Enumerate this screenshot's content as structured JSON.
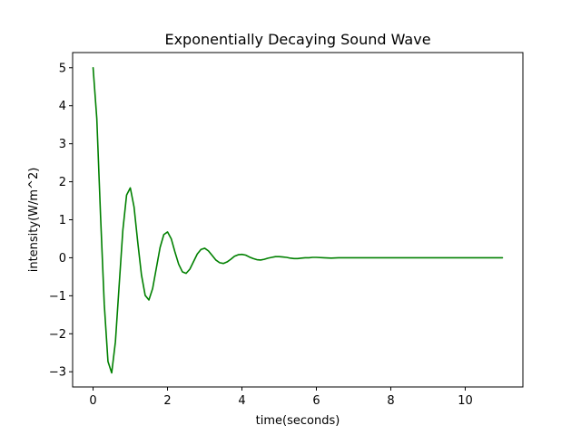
{
  "chart_data": {
    "type": "line",
    "title": "Exponentially Decaying Sound Wave",
    "xlabel": "time(seconds)",
    "ylabel": "intensity(W/m^2)",
    "xlim": [
      -0.55,
      11.55
    ],
    "ylim": [
      -3.4,
      5.4
    ],
    "grid": false,
    "legend": "none",
    "xticks": [
      0,
      2,
      4,
      6,
      8,
      10
    ],
    "xtick_labels": [
      "0",
      "2",
      "4",
      "6",
      "8",
      "10"
    ],
    "yticks": [
      -3,
      -2,
      -1,
      0,
      1,
      2,
      3,
      4,
      5
    ],
    "ytick_labels": [
      "−3",
      "−2",
      "−1",
      "0",
      "1",
      "2",
      "3",
      "4",
      "5"
    ],
    "series": [
      {
        "color": "#008000",
        "x": [
          0.0,
          0.1,
          0.2,
          0.3,
          0.4,
          0.5,
          0.6,
          0.7,
          0.8,
          0.9,
          1.0,
          1.1,
          1.2,
          1.3,
          1.4,
          1.5,
          1.6,
          1.7,
          1.8,
          1.9,
          2.0,
          2.1,
          2.2,
          2.3,
          2.4,
          2.5,
          2.6,
          2.7,
          2.8,
          2.9,
          3.0,
          3.1,
          3.2,
          3.3,
          3.4,
          3.5,
          3.6,
          3.7,
          3.8,
          3.9,
          4.0,
          4.1,
          4.2,
          4.3,
          4.4,
          4.5,
          4.6,
          4.7,
          4.8,
          4.9,
          5.0,
          5.1,
          5.2,
          5.3,
          5.4,
          5.5,
          5.6,
          5.7,
          5.8,
          5.9,
          6.0,
          6.2,
          6.4,
          6.6,
          6.8,
          7.0,
          7.2,
          7.4,
          7.6,
          7.8,
          8.0,
          8.5,
          9.0,
          9.5,
          10.0,
          10.5,
          11.0
        ],
        "y": [
          5.0,
          3.66,
          1.12,
          -1.22,
          -2.73,
          -3.03,
          -2.21,
          -0.73,
          0.73,
          1.65,
          1.84,
          1.34,
          0.41,
          -0.45,
          -0.99,
          -1.11,
          -0.81,
          -0.27,
          0.27,
          0.61,
          0.68,
          0.5,
          0.15,
          -0.17,
          -0.37,
          -0.41,
          -0.3,
          -0.1,
          0.1,
          0.22,
          0.25,
          0.18,
          0.06,
          -0.06,
          -0.13,
          -0.15,
          -0.11,
          -0.04,
          0.04,
          0.08,
          0.09,
          0.07,
          0.02,
          -0.02,
          -0.05,
          -0.06,
          -0.04,
          -0.01,
          0.01,
          0.03,
          0.03,
          0.02,
          0.01,
          -0.01,
          -0.02,
          -0.02,
          -0.01,
          0.0,
          0.0,
          0.01,
          0.01,
          0.0,
          -0.01,
          0.0,
          0.0,
          0.0,
          0.0,
          0.0,
          0.0,
          0.0,
          0.0,
          0.0,
          0.0,
          0.0,
          0.0,
          0.0,
          0.0
        ]
      }
    ]
  }
}
